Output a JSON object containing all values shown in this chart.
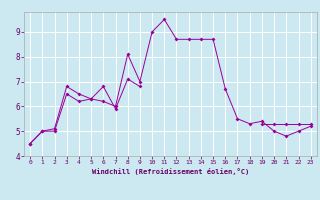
{
  "xlabel": "Windchill (Refroidissement éolien,°C)",
  "background_color": "#cce8f0",
  "grid_color": "#ffffff",
  "line_color": "#990099",
  "xlim": [
    -0.5,
    23.5
  ],
  "ylim": [
    4.0,
    9.8
  ],
  "yticks": [
    4,
    5,
    6,
    7,
    8,
    9
  ],
  "xticks": [
    0,
    1,
    2,
    3,
    4,
    5,
    6,
    7,
    8,
    9,
    10,
    11,
    12,
    13,
    14,
    15,
    16,
    17,
    18,
    19,
    20,
    21,
    22,
    23
  ],
  "hours": [
    0,
    1,
    2,
    3,
    4,
    5,
    6,
    7,
    8,
    9,
    10,
    11,
    12,
    13,
    14,
    15,
    16,
    17,
    18,
    19,
    20,
    21,
    22,
    23
  ],
  "line1": [
    4.5,
    5.0,
    5.0,
    6.5,
    6.2,
    6.3,
    6.2,
    6.0,
    8.1,
    7.0,
    9.0,
    9.5,
    8.7,
    8.7,
    8.7,
    8.7,
    6.7,
    5.5,
    5.3,
    5.4,
    5.0,
    4.8,
    5.0,
    5.2
  ],
  "line2_x": [
    0,
    1,
    2,
    3,
    4,
    5,
    6,
    7,
    8,
    9
  ],
  "line2_y": [
    4.5,
    5.0,
    5.1,
    6.8,
    6.5,
    6.3,
    6.8,
    5.9,
    7.1,
    6.8
  ],
  "line3_x": [
    19,
    20,
    21,
    22,
    23
  ],
  "line3_y": [
    5.3,
    5.3,
    5.3,
    5.3,
    5.3
  ]
}
